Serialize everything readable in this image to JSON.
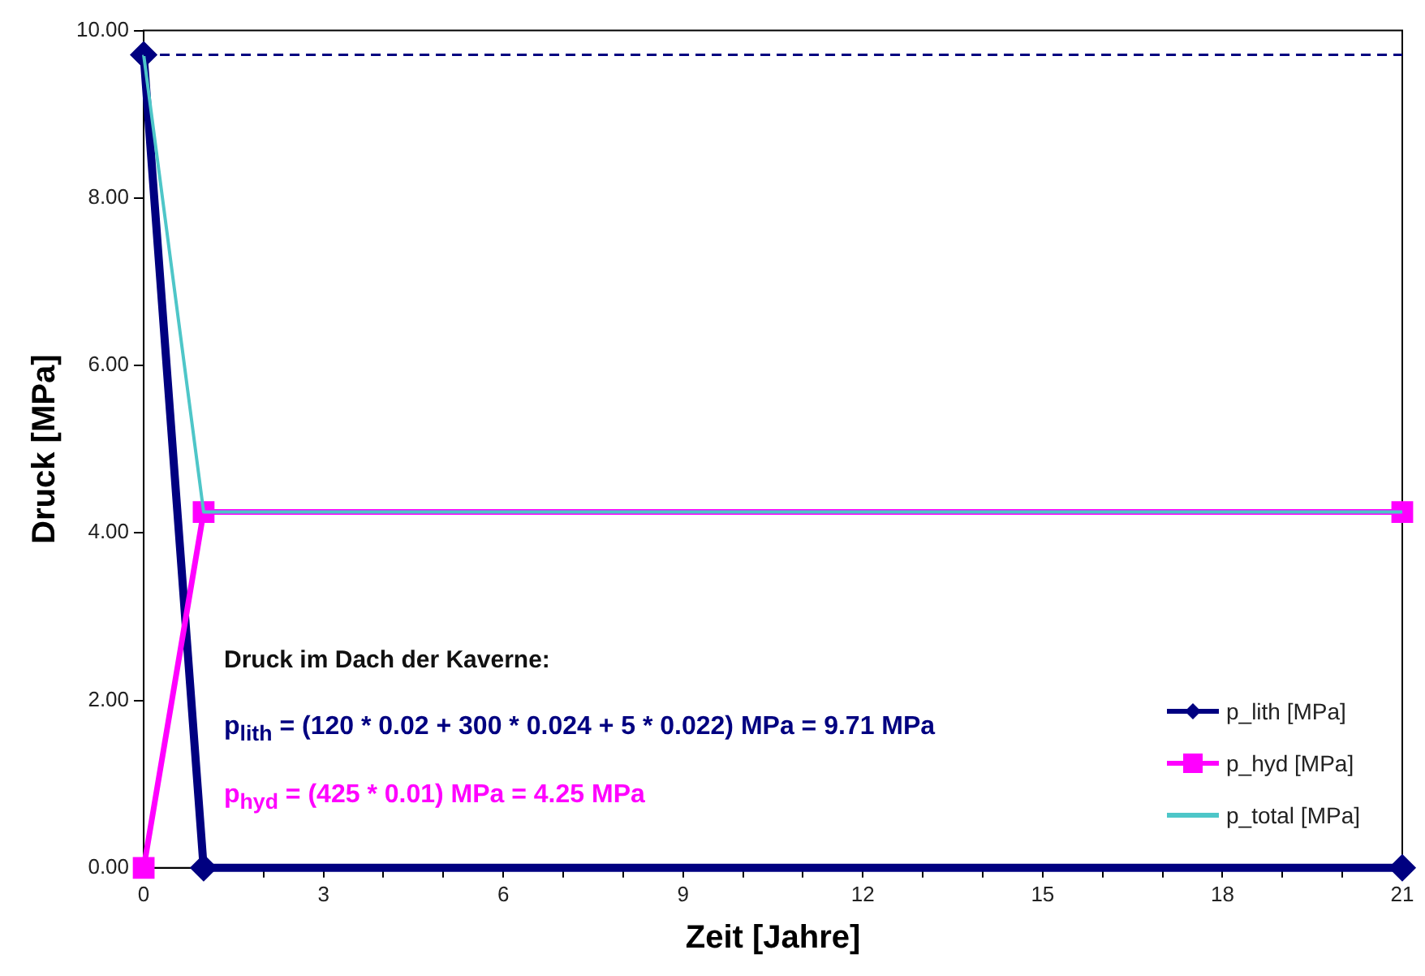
{
  "chart_data": {
    "type": "line",
    "xlabel": "Zeit [Jahre]",
    "ylabel": "Druck [MPa]",
    "xlim": [
      0,
      21
    ],
    "xticks": [
      0,
      {
        "value": 1,
        "label": null
      },
      {
        "value": 2,
        "label": null
      },
      3,
      {
        "value": 4,
        "label": null
      },
      {
        "value": 5,
        "label": null
      },
      6,
      {
        "value": 7,
        "label": null
      },
      {
        "value": 8,
        "label": null
      },
      9,
      {
        "value": 10,
        "label": null
      },
      {
        "value": 11,
        "label": null
      },
      12,
      {
        "value": 13,
        "label": null
      },
      {
        "value": 14,
        "label": null
      },
      15,
      {
        "value": 16,
        "label": null
      },
      {
        "value": 17,
        "label": null
      },
      18,
      {
        "value": 19,
        "label": null
      },
      {
        "value": 20,
        "label": null
      },
      21
    ],
    "ylim": [
      0,
      10
    ],
    "yticks": [
      {
        "value": 0,
        "label": "0.00"
      },
      {
        "value": 2,
        "label": "2.00"
      },
      {
        "value": 4,
        "label": "4.00"
      },
      {
        "value": 6,
        "label": "6.00"
      },
      {
        "value": 8,
        "label": "8.00"
      },
      {
        "value": 10,
        "label": "10.00"
      }
    ],
    "grid": false,
    "legend": "bottom right",
    "line_style": "solid",
    "series": [
      {
        "name": "p_lith [MPa]",
        "color": "#000080",
        "marker": "diamond",
        "x": [
          0,
          1,
          21
        ],
        "values": [
          9.71,
          0,
          0
        ]
      },
      {
        "name": "p_hyd [MPa]",
        "color": "#ff00ff",
        "marker": "square",
        "x": [
          0,
          1,
          21
        ],
        "values": [
          0,
          4.25,
          4.25
        ]
      },
      {
        "name": "p_total [MPa]",
        "color": "#4ec6c8",
        "marker": "none",
        "x": [
          0,
          1,
          21
        ],
        "values": [
          9.71,
          4.25,
          4.25
        ]
      }
    ],
    "ref_lines": [
      {
        "axis": "y",
        "value": 9.71,
        "label": null,
        "color": "#000080",
        "line_style": "dashed"
      }
    ],
    "annotations": [
      "Druck im Dach der Kaverne:",
      "p$_{lith}$ = (120 * 0.02 + 300 * 0.024 + 5 * 0.022) MPa = 9.71 MPa",
      "p$_{hyd}$ = (425 * 0.01) MPa = 4.25 MPa"
    ]
  }
}
